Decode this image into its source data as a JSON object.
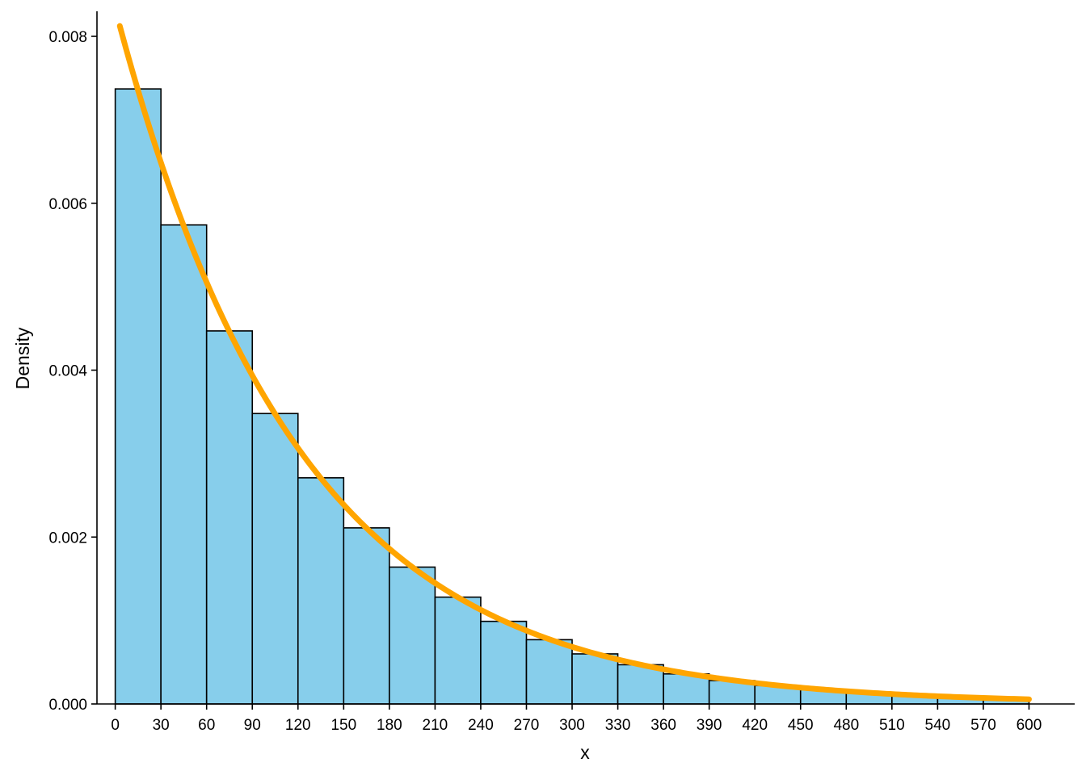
{
  "chart_data": {
    "type": "bar",
    "subtype": "histogram",
    "xlabel": "x",
    "ylabel": "Density",
    "xlim": [
      -12,
      630
    ],
    "ylim": [
      0,
      0.0083
    ],
    "bin_width": 30,
    "bins": [
      {
        "start": 0,
        "end": 30,
        "density": 0.00737
      },
      {
        "start": 30,
        "end": 60,
        "density": 0.00574
      },
      {
        "start": 60,
        "end": 90,
        "density": 0.00447
      },
      {
        "start": 90,
        "end": 120,
        "density": 0.00348
      },
      {
        "start": 120,
        "end": 150,
        "density": 0.00271
      },
      {
        "start": 150,
        "end": 180,
        "density": 0.00211
      },
      {
        "start": 180,
        "end": 210,
        "density": 0.00164
      },
      {
        "start": 210,
        "end": 240,
        "density": 0.00128
      },
      {
        "start": 240,
        "end": 270,
        "density": 0.00099
      },
      {
        "start": 270,
        "end": 300,
        "density": 0.00077
      },
      {
        "start": 300,
        "end": 330,
        "density": 0.0006
      },
      {
        "start": 330,
        "end": 360,
        "density": 0.00047
      },
      {
        "start": 360,
        "end": 390,
        "density": 0.00036
      },
      {
        "start": 390,
        "end": 420,
        "density": 0.00028
      },
      {
        "start": 420,
        "end": 450,
        "density": 0.00022
      },
      {
        "start": 450,
        "end": 480,
        "density": 0.00017
      },
      {
        "start": 480,
        "end": 510,
        "density": 0.00013
      },
      {
        "start": 510,
        "end": 540,
        "density": 0.0001
      },
      {
        "start": 540,
        "end": 570,
        "density": 8e-05
      },
      {
        "start": 570,
        "end": 600,
        "density": 6e-05
      }
    ],
    "curve": {
      "type": "line",
      "description": "exponential density",
      "rate": 0.00833,
      "x_range": [
        3,
        600
      ],
      "color": "#FFA500"
    },
    "xticks": [
      "0",
      "30",
      "60",
      "90",
      "120",
      "150",
      "180",
      "210",
      "240",
      "270",
      "300",
      "330",
      "360",
      "390",
      "420",
      "450",
      "480",
      "510",
      "540",
      "570",
      "600"
    ],
    "yticks": [
      "0.000",
      "0.002",
      "0.004",
      "0.006",
      "0.008"
    ],
    "bar_fill": "#87CEEB",
    "bar_stroke": "#000000",
    "grid": false
  }
}
